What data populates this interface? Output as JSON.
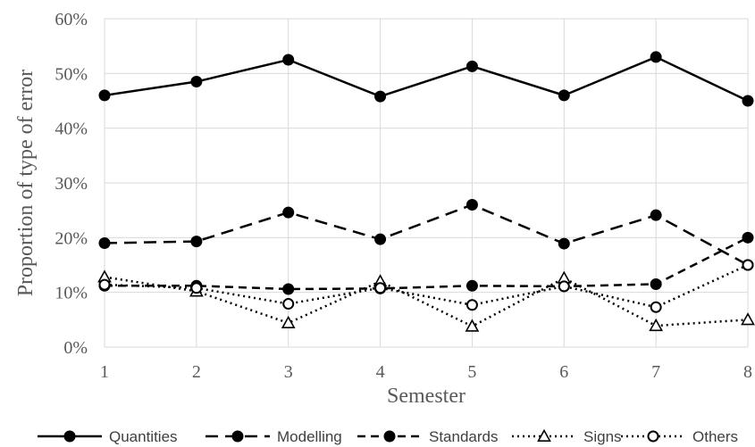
{
  "chart_data": {
    "type": "line",
    "xlabel": "Semester",
    "ylabel": "Proportion of type of error",
    "categories": [
      "1",
      "2",
      "3",
      "4",
      "5",
      "6",
      "7",
      "8"
    ],
    "y_ticks": [
      "0%",
      "10%",
      "20%",
      "30%",
      "40%",
      "50%",
      "60%"
    ],
    "ylim": [
      0,
      60
    ],
    "grid": true,
    "legend_position": "bottom",
    "series": [
      {
        "name": "Quantities",
        "values": [
          46,
          48.5,
          52.5,
          45.8,
          51.3,
          46,
          53,
          45
        ],
        "line": "solid",
        "marker": "filled-circle",
        "color": "#000000"
      },
      {
        "name": "Modelling",
        "values": [
          19,
          19.3,
          24.6,
          19.7,
          26,
          18.9,
          24.1,
          15
        ],
        "line": "long-dash",
        "marker": "filled-circle",
        "color": "#000000"
      },
      {
        "name": "Standards",
        "values": [
          11.2,
          11.2,
          10.6,
          10.7,
          11.2,
          11.1,
          11.5,
          20
        ],
        "line": "dash",
        "marker": "filled-circle",
        "color": "#000000"
      },
      {
        "name": "Signs",
        "values": [
          12.8,
          10.2,
          4.4,
          12,
          3.8,
          12.6,
          3.9,
          5
        ],
        "line": "dotted",
        "marker": "open-triangle",
        "color": "#000000"
      },
      {
        "name": "Others",
        "values": [
          11.4,
          10.8,
          7.9,
          10.8,
          7.7,
          11.1,
          7.3,
          15
        ],
        "line": "dotted",
        "marker": "open-circle",
        "color": "#000000"
      }
    ]
  }
}
